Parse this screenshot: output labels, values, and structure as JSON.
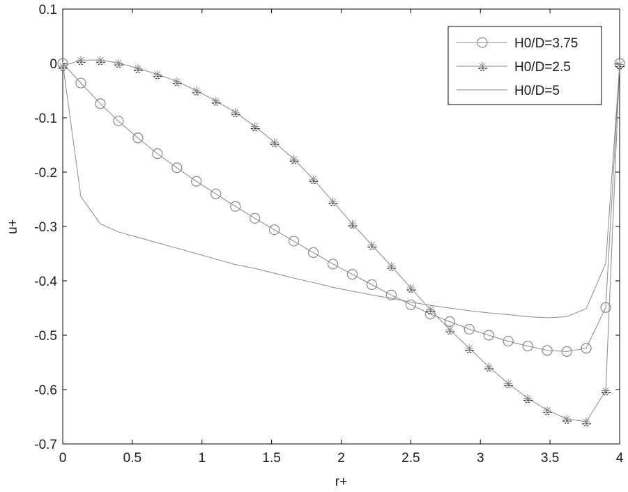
{
  "chart_data": {
    "type": "line",
    "xlabel": "r+",
    "ylabel": "u+",
    "xlim": [
      0,
      4
    ],
    "ylim": [
      -0.7,
      0.1
    ],
    "xticks": [
      0,
      0.5,
      1,
      1.5,
      2,
      2.5,
      3,
      3.5,
      4
    ],
    "yticks": [
      0.1,
      0,
      -0.1,
      -0.2,
      -0.3,
      -0.4,
      -0.5,
      -0.6,
      -0.7
    ],
    "xtick_labels": [
      "0",
      "0.5",
      "1",
      "1.5",
      "2",
      "2.5",
      "3",
      "3.5",
      "4"
    ],
    "ytick_labels": [
      "0.1",
      "0",
      "-0.1",
      "-0.2",
      "-0.3",
      "-0.4",
      "-0.5",
      "-0.6",
      "-0.7"
    ],
    "grid": false,
    "legend_position": "top-right",
    "colors": {
      "line": "#888888",
      "axis": "#000000",
      "text": "#1a1a1a"
    },
    "series": [
      {
        "name": "H0/D=3.75",
        "marker": "circle",
        "x": [
          0,
          0.13,
          0.27,
          0.4,
          0.54,
          0.68,
          0.82,
          0.96,
          1.1,
          1.24,
          1.38,
          1.52,
          1.66,
          1.8,
          1.94,
          2.08,
          2.22,
          2.36,
          2.5,
          2.64,
          2.78,
          2.92,
          3.06,
          3.2,
          3.34,
          3.48,
          3.62,
          3.76,
          3.9,
          4.0
        ],
        "y": [
          0,
          -0.036,
          -0.074,
          -0.106,
          -0.137,
          -0.166,
          -0.192,
          -0.217,
          -0.24,
          -0.263,
          -0.285,
          -0.306,
          -0.327,
          -0.348,
          -0.369,
          -0.388,
          -0.407,
          -0.426,
          -0.444,
          -0.461,
          -0.475,
          -0.489,
          -0.5,
          -0.511,
          -0.52,
          -0.528,
          -0.53,
          -0.524,
          -0.449,
          0
        ]
      },
      {
        "name": "H0/D=2.5",
        "marker": "star",
        "x": [
          0,
          0.13,
          0.27,
          0.4,
          0.54,
          0.68,
          0.82,
          0.96,
          1.1,
          1.24,
          1.38,
          1.52,
          1.66,
          1.8,
          1.94,
          2.08,
          2.22,
          2.36,
          2.5,
          2.64,
          2.78,
          2.92,
          3.06,
          3.2,
          3.34,
          3.48,
          3.62,
          3.76,
          3.9,
          4.0
        ],
        "y": [
          -0.005,
          0.006,
          0.006,
          0.001,
          -0.009,
          -0.02,
          -0.033,
          -0.05,
          -0.069,
          -0.09,
          -0.116,
          -0.145,
          -0.176,
          -0.213,
          -0.254,
          -0.295,
          -0.334,
          -0.373,
          -0.413,
          -0.453,
          -0.49,
          -0.524,
          -0.558,
          -0.589,
          -0.616,
          -0.638,
          -0.654,
          -0.659,
          -0.602,
          -0.002
        ]
      },
      {
        "name": "H0/D=5",
        "marker": "none",
        "x": [
          0,
          0.13,
          0.27,
          0.4,
          0.54,
          0.68,
          0.82,
          0.96,
          1.1,
          1.24,
          1.38,
          1.52,
          1.66,
          1.8,
          1.94,
          2.08,
          2.22,
          2.36,
          2.5,
          2.64,
          2.78,
          2.92,
          3.06,
          3.2,
          3.34,
          3.48,
          3.62,
          3.76,
          3.9,
          4.0
        ],
        "y": [
          0,
          -0.245,
          -0.295,
          -0.31,
          -0.32,
          -0.33,
          -0.34,
          -0.35,
          -0.36,
          -0.37,
          -0.377,
          -0.386,
          -0.395,
          -0.403,
          -0.412,
          -0.419,
          -0.426,
          -0.432,
          -0.439,
          -0.445,
          -0.45,
          -0.455,
          -0.459,
          -0.462,
          -0.466,
          -0.468,
          -0.466,
          -0.451,
          -0.368,
          -0.003
        ]
      }
    ]
  }
}
